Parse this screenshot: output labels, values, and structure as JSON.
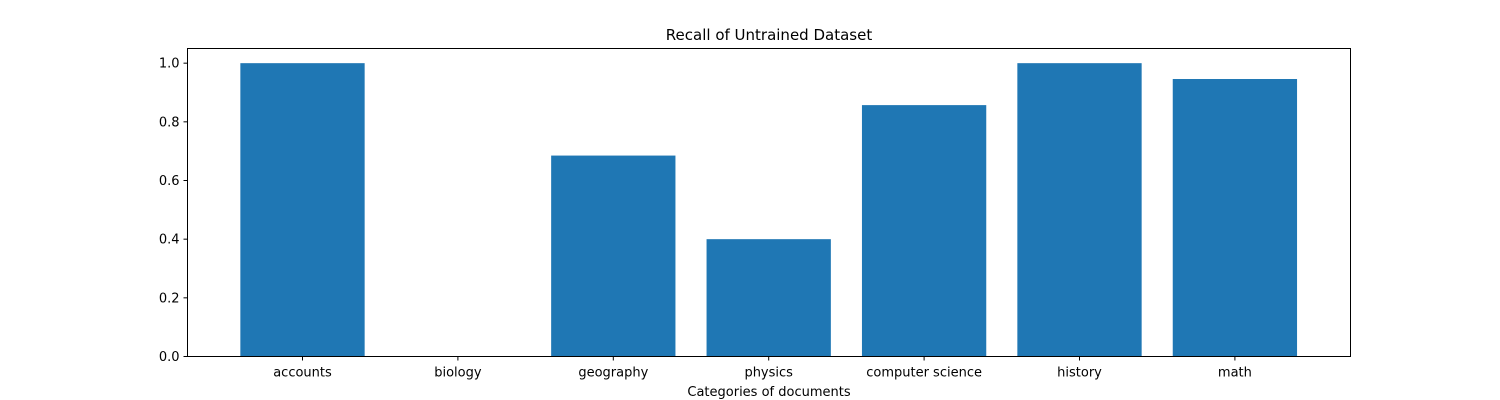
{
  "chart_data": {
    "type": "bar",
    "title": "Recall of Untrained Dataset",
    "xlabel": "Categories of documents",
    "ylabel": "",
    "categories": [
      "accounts",
      "biology",
      "geography",
      "physics",
      "computer science",
      "history",
      "math"
    ],
    "values": [
      1.0,
      0.0,
      0.685,
      0.4,
      0.857,
      1.0,
      0.946
    ],
    "ylim": [
      0,
      1.05
    ],
    "yticks": [
      "0.0",
      "0.2",
      "0.4",
      "0.6",
      "0.8",
      "1.0"
    ],
    "bar_color": "#1f77b4",
    "grid": false,
    "legend": "none"
  }
}
